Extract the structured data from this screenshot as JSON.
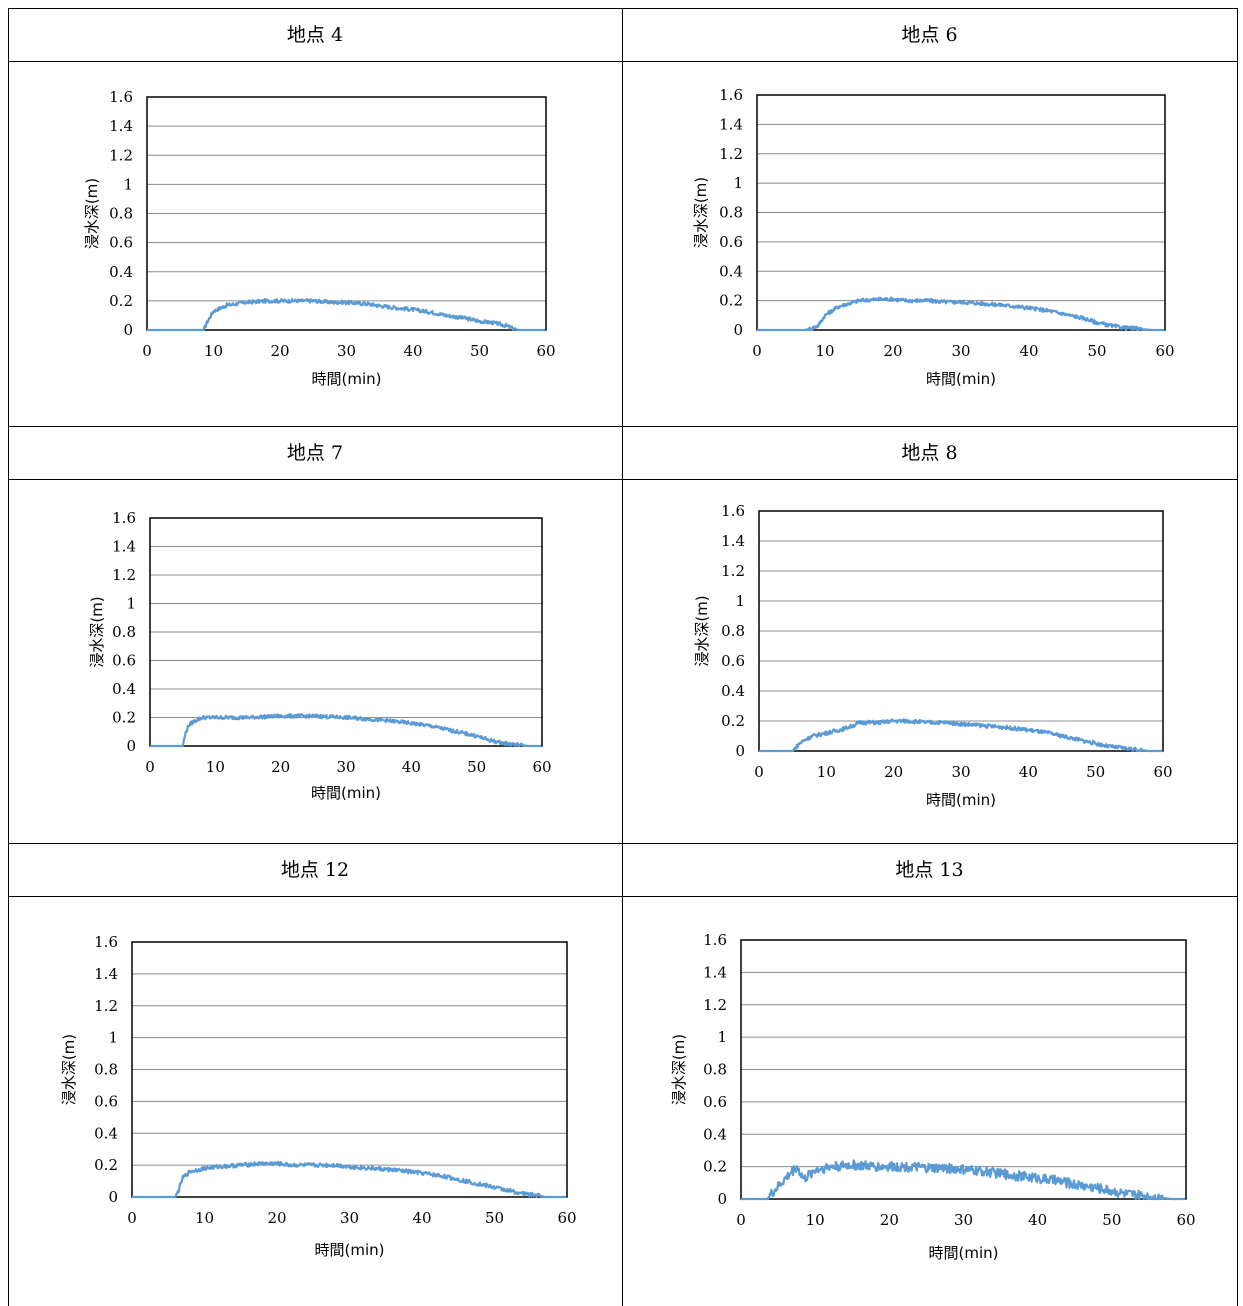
{
  "panels": [
    {
      "title": "地点 4"
    },
    {
      "title": "地点 6"
    },
    {
      "title": "地点 7"
    },
    {
      "title": "地点 8"
    },
    {
      "title": "地点 12"
    },
    {
      "title": "地点 13"
    }
  ],
  "chart_data": [
    {
      "type": "line",
      "title": "地点 4",
      "xlabel": "時間(min)",
      "ylabel": "浸水深(m)",
      "xlim": [
        0,
        60
      ],
      "ylim": [
        0,
        1.6
      ],
      "xticks": [
        "0",
        "10",
        "20",
        "30",
        "40",
        "50",
        "60"
      ],
      "yticks": [
        "0",
        "0.2",
        "0.4",
        "0.6",
        "0.8",
        "1",
        "1.2",
        "1.4",
        "1.6"
      ],
      "grid": "horizontal",
      "line_color": "#5B9BD5",
      "series": [
        {
          "x": [
            0,
            8.5,
            9,
            10,
            12,
            15,
            18,
            20,
            22,
            25,
            28,
            30,
            33,
            36,
            40,
            43,
            45,
            48,
            50,
            52,
            54,
            55,
            56,
            60
          ],
          "y": [
            0,
            0,
            0.05,
            0.13,
            0.17,
            0.19,
            0.2,
            0.2,
            0.2,
            0.2,
            0.19,
            0.19,
            0.18,
            0.16,
            0.14,
            0.12,
            0.1,
            0.08,
            0.06,
            0.05,
            0.03,
            0.01,
            0,
            0
          ]
        }
      ]
    },
    {
      "type": "line",
      "title": "地点 6",
      "xlabel": "時間(min)",
      "ylabel": "浸水深(m)",
      "xlim": [
        0,
        60
      ],
      "ylim": [
        0,
        1.6
      ],
      "xticks": [
        "0",
        "10",
        "20",
        "30",
        "40",
        "50",
        "60"
      ],
      "yticks": [
        "0",
        "0.2",
        "0.4",
        "0.6",
        "0.8",
        "1",
        "1.2",
        "1.4",
        "1.6"
      ],
      "grid": "horizontal",
      "line_color": "#5B9BD5",
      "series": [
        {
          "x": [
            0,
            7,
            8,
            9,
            10,
            12,
            15,
            18,
            20,
            22,
            25,
            28,
            30,
            33,
            36,
            40,
            43,
            45,
            48,
            50,
            52,
            54,
            56,
            58,
            60
          ],
          "y": [
            0,
            0,
            0.01,
            0.03,
            0.1,
            0.16,
            0.2,
            0.21,
            0.21,
            0.2,
            0.2,
            0.19,
            0.19,
            0.18,
            0.17,
            0.15,
            0.13,
            0.11,
            0.08,
            0.05,
            0.03,
            0.015,
            0.01,
            0,
            0
          ]
        }
      ]
    },
    {
      "type": "line",
      "title": "地点 7",
      "xlabel": "時間(min)",
      "ylabel": "浸水深(m)",
      "xlim": [
        0,
        60
      ],
      "ylim": [
        0,
        1.6
      ],
      "xticks": [
        "0",
        "10",
        "20",
        "30",
        "40",
        "50",
        "60"
      ],
      "yticks": [
        "0",
        "0.2",
        "0.4",
        "0.6",
        "0.8",
        "1",
        "1.2",
        "1.4",
        "1.6"
      ],
      "grid": "horizontal",
      "line_color": "#5B9BD5",
      "series": [
        {
          "x": [
            0,
            5,
            5.5,
            6,
            7,
            8,
            10,
            15,
            20,
            25,
            30,
            33,
            36,
            40,
            43,
            45,
            48,
            50,
            52,
            54,
            56,
            58,
            60
          ],
          "y": [
            0,
            0,
            0.1,
            0.15,
            0.18,
            0.2,
            0.2,
            0.2,
            0.21,
            0.21,
            0.2,
            0.19,
            0.18,
            0.16,
            0.14,
            0.12,
            0.09,
            0.07,
            0.04,
            0.02,
            0.01,
            0,
            0
          ]
        }
      ]
    },
    {
      "type": "line",
      "title": "地点 8",
      "xlabel": "時間(min)",
      "ylabel": "浸水深(m)",
      "xlim": [
        0,
        60
      ],
      "ylim": [
        0,
        1.6
      ],
      "xticks": [
        "0",
        "10",
        "20",
        "30",
        "40",
        "50",
        "60"
      ],
      "yticks": [
        "0",
        "0.2",
        "0.4",
        "0.6",
        "0.8",
        "1",
        "1.2",
        "1.4",
        "1.6"
      ],
      "grid": "horizontal",
      "line_color": "#5B9BD5",
      "series": [
        {
          "x": [
            0,
            5,
            6,
            7,
            8,
            10,
            12,
            14,
            15,
            18,
            20,
            22,
            25,
            28,
            30,
            33,
            36,
            40,
            43,
            45,
            48,
            50,
            52,
            54,
            56,
            58,
            60
          ],
          "y": [
            0,
            0,
            0.05,
            0.08,
            0.1,
            0.12,
            0.14,
            0.17,
            0.19,
            0.19,
            0.2,
            0.2,
            0.19,
            0.19,
            0.18,
            0.17,
            0.16,
            0.14,
            0.12,
            0.1,
            0.07,
            0.05,
            0.03,
            0.02,
            0.01,
            0,
            0
          ]
        }
      ]
    },
    {
      "type": "line",
      "title": "地点 12",
      "xlabel": "時間(min)",
      "ylabel": "浸水深(m)",
      "xlim": [
        0,
        60
      ],
      "ylim": [
        0,
        1.6
      ],
      "xticks": [
        "0",
        "10",
        "20",
        "30",
        "40",
        "50",
        "60"
      ],
      "yticks": [
        "0",
        "0.2",
        "0.4",
        "0.6",
        "0.8",
        "1",
        "1.2",
        "1.4",
        "1.6"
      ],
      "grid": "horizontal",
      "line_color": "#5B9BD5",
      "series": [
        {
          "x": [
            0,
            6,
            6.5,
            7,
            8,
            10,
            12,
            15,
            18,
            20,
            22,
            25,
            28,
            30,
            33,
            36,
            40,
            43,
            45,
            48,
            50,
            52,
            54,
            56,
            57,
            60
          ],
          "y": [
            0,
            0,
            0.05,
            0.12,
            0.16,
            0.18,
            0.19,
            0.2,
            0.21,
            0.21,
            0.2,
            0.2,
            0.2,
            0.19,
            0.18,
            0.17,
            0.15,
            0.13,
            0.11,
            0.08,
            0.06,
            0.04,
            0.02,
            0.01,
            0,
            0
          ]
        }
      ]
    },
    {
      "type": "line",
      "title": "地点 13",
      "xlabel": "時間(min)",
      "ylabel": "浸水深(m)",
      "xlim": [
        0,
        60
      ],
      "ylim": [
        0,
        1.6
      ],
      "xticks": [
        "0",
        "10",
        "20",
        "30",
        "40",
        "50",
        "60"
      ],
      "yticks": [
        "0",
        "0.2",
        "0.4",
        "0.6",
        "0.8",
        "1",
        "1.2",
        "1.4",
        "1.6"
      ],
      "grid": "horizontal",
      "line_color": "#5B9BD5",
      "series": [
        {
          "x": [
            0,
            3.5,
            4.5,
            5.5,
            6.5,
            7.5,
            8.5,
            10,
            12,
            15,
            18,
            20,
            22,
            25,
            28,
            30,
            33,
            36,
            40,
            43,
            45,
            48,
            50,
            52,
            54,
            56,
            58,
            60
          ],
          "y": [
            0,
            0,
            0.05,
            0.1,
            0.15,
            0.2,
            0.12,
            0.18,
            0.2,
            0.21,
            0.2,
            0.2,
            0.2,
            0.19,
            0.19,
            0.18,
            0.17,
            0.15,
            0.13,
            0.11,
            0.09,
            0.07,
            0.05,
            0.03,
            0.02,
            0.01,
            0,
            0
          ]
        }
      ]
    }
  ]
}
